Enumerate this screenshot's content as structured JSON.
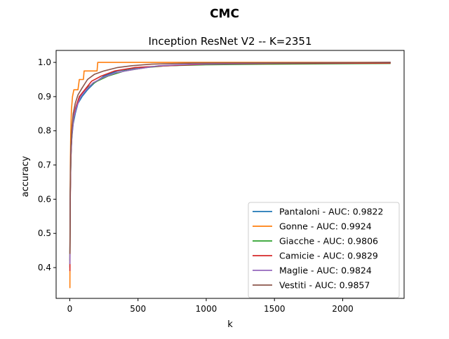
{
  "chart_data": {
    "type": "line",
    "suptitle": "CMC",
    "title": "Inception ResNet V2 -- K=2351",
    "xlabel": "k",
    "ylabel": "accuracy",
    "xlim": [
      -100,
      2450
    ],
    "ylim": [
      0.31,
      1.035
    ],
    "xticks": [
      0,
      500,
      1000,
      1500,
      2000
    ],
    "yticks": [
      0.4,
      0.5,
      0.6,
      0.7,
      0.8,
      0.9,
      1.0
    ],
    "xtick_labels": [
      "0",
      "500",
      "1000",
      "1500",
      "2000"
    ],
    "ytick_labels": [
      "0.4",
      "0.5",
      "0.6",
      "0.7",
      "0.8",
      "0.9",
      "1.0"
    ],
    "grid": false,
    "legend_position": "lower-right",
    "series": [
      {
        "name": "Pantaloni - AUC: 0.9822",
        "color": "#1f77b4",
        "points": [
          [
            1,
            0.4
          ],
          [
            3,
            0.6
          ],
          [
            8,
            0.72
          ],
          [
            15,
            0.78
          ],
          [
            25,
            0.82
          ],
          [
            40,
            0.85
          ],
          [
            60,
            0.88
          ],
          [
            90,
            0.9
          ],
          [
            130,
            0.92
          ],
          [
            180,
            0.94
          ],
          [
            250,
            0.96
          ],
          [
            350,
            0.975
          ],
          [
            500,
            0.985
          ],
          [
            700,
            0.99
          ],
          [
            1000,
            0.995
          ],
          [
            1500,
            0.997
          ],
          [
            2000,
            0.998
          ],
          [
            2351,
            1.0
          ]
        ]
      },
      {
        "name": "Gonne - AUC: 0.9924",
        "color": "#ff7f0e",
        "points": [
          [
            1,
            0.34
          ],
          [
            2,
            0.54
          ],
          [
            4,
            0.69
          ],
          [
            7,
            0.79
          ],
          [
            12,
            0.86
          ],
          [
            20,
            0.9
          ],
          [
            30,
            0.92
          ],
          [
            60,
            0.92
          ],
          [
            70,
            0.95
          ],
          [
            100,
            0.95
          ],
          [
            105,
            0.975
          ],
          [
            200,
            0.975
          ],
          [
            205,
            1.0
          ],
          [
            2351,
            1.0
          ]
        ]
      },
      {
        "name": "Giacche - AUC: 0.9806",
        "color": "#2ca02c",
        "points": [
          [
            1,
            0.42
          ],
          [
            4,
            0.63
          ],
          [
            10,
            0.75
          ],
          [
            20,
            0.81
          ],
          [
            35,
            0.85
          ],
          [
            55,
            0.88
          ],
          [
            90,
            0.91
          ],
          [
            140,
            0.93
          ],
          [
            200,
            0.945
          ],
          [
            280,
            0.96
          ],
          [
            400,
            0.975
          ],
          [
            560,
            0.985
          ],
          [
            700,
            0.99
          ],
          [
            1000,
            0.993
          ],
          [
            1480,
            0.995
          ],
          [
            2351,
            0.997
          ]
        ]
      },
      {
        "name": "Camicie - AUC: 0.9829",
        "color": "#d62728",
        "points": [
          [
            1,
            0.39
          ],
          [
            3,
            0.58
          ],
          [
            8,
            0.72
          ],
          [
            15,
            0.79
          ],
          [
            28,
            0.84
          ],
          [
            45,
            0.87
          ],
          [
            70,
            0.9
          ],
          [
            110,
            0.92
          ],
          [
            160,
            0.945
          ],
          [
            230,
            0.96
          ],
          [
            330,
            0.975
          ],
          [
            480,
            0.985
          ],
          [
            700,
            0.99
          ],
          [
            1000,
            0.995
          ],
          [
            1500,
            0.997
          ],
          [
            2351,
            0.998
          ]
        ]
      },
      {
        "name": "Maglie - AUC: 0.9824",
        "color": "#9467bd",
        "points": [
          [
            1,
            0.41
          ],
          [
            3,
            0.6
          ],
          [
            8,
            0.73
          ],
          [
            16,
            0.79
          ],
          [
            30,
            0.84
          ],
          [
            50,
            0.87
          ],
          [
            80,
            0.9
          ],
          [
            120,
            0.92
          ],
          [
            170,
            0.94
          ],
          [
            240,
            0.955
          ],
          [
            340,
            0.97
          ],
          [
            480,
            0.98
          ],
          [
            650,
            0.99
          ],
          [
            900,
            0.995
          ],
          [
            1500,
            0.998
          ],
          [
            2351,
            1.0
          ]
        ]
      },
      {
        "name": "Vestiti - AUC: 0.9857",
        "color": "#8c564b",
        "points": [
          [
            1,
            0.44
          ],
          [
            3,
            0.62
          ],
          [
            7,
            0.74
          ],
          [
            14,
            0.8
          ],
          [
            25,
            0.85
          ],
          [
            40,
            0.88
          ],
          [
            60,
            0.905
          ],
          [
            90,
            0.925
          ],
          [
            130,
            0.95
          ],
          [
            180,
            0.965
          ],
          [
            250,
            0.975
          ],
          [
            350,
            0.985
          ],
          [
            450,
            0.99
          ],
          [
            600,
            0.995
          ],
          [
            900,
            0.998
          ],
          [
            2351,
            1.0
          ]
        ]
      }
    ]
  }
}
